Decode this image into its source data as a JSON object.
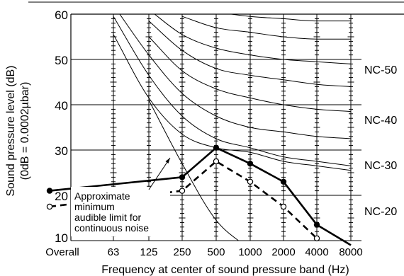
{
  "chart_data": {
    "type": "line",
    "ylabel_line1": "Sound pressure level (dB)",
    "ylabel_line2": "(0dB = 0.0002µbar)",
    "xlabel": "Frequency at center of sound pressure band (Hz)",
    "ylim": [
      10,
      60
    ],
    "y_ticks": [
      "10",
      "20",
      "30",
      "40",
      "50",
      "60"
    ],
    "x_categories": [
      "Overall",
      "63",
      "125",
      "250",
      "500",
      "1000",
      "2000",
      "4000",
      "8000"
    ],
    "grid": true,
    "nc_curve_labels": [
      "NC-50",
      "NC-40",
      "NC-30",
      "NC-20"
    ],
    "nc_curves": [
      {
        "values": [
          null,
          55.5,
          41.5,
          33.5,
          30.5,
          29.5,
          27.5,
          26.5,
          25.5
        ]
      },
      {
        "values": [
          null,
          59.5,
          46.5,
          37.5,
          32.5,
          30.5,
          28.5,
          27.5,
          26.5
        ]
      },
      {
        "values": [
          null,
          62.0,
          51.0,
          42.5,
          37.5,
          35.0,
          34.0,
          33.0,
          32.5
        ]
      },
      {
        "values": [
          null,
          null,
          55.0,
          47.5,
          43.5,
          41.5,
          40.0,
          39.0,
          38.5
        ]
      },
      {
        "values": [
          null,
          null,
          58.5,
          52.0,
          48.0,
          46.5,
          45.5,
          44.5,
          44.0
        ]
      },
      {
        "values": [
          null,
          null,
          61.0,
          55.5,
          52.5,
          51.0,
          50.0,
          49.5,
          49.0
        ]
      },
      {
        "values": [
          null,
          null,
          null,
          59.5,
          57.0,
          56.0,
          55.0,
          54.5,
          54.5
        ]
      },
      {
        "values": [
          null,
          null,
          null,
          62.0,
          60.5,
          59.5,
          59.0,
          58.5,
          58.5
        ]
      }
    ],
    "audible_limit_curve": [
      {
        "x": "125",
        "y": 41.0
      },
      {
        "x": "250",
        "y": 27.0
      },
      {
        "x": "500",
        "y": 14.5
      },
      {
        "x": "1000",
        "y": 8.0
      }
    ],
    "series": [
      {
        "style": "solid",
        "marker": "filled-circle",
        "values": [
          21.0,
          null,
          null,
          24.0,
          30.5,
          27.0,
          23.0,
          13.5,
          9.0
        ]
      },
      {
        "style": "dashed",
        "marker": "open-circle",
        "values": [
          17.5,
          null,
          null,
          21.0,
          27.5,
          23.0,
          17.5,
          10.5,
          null
        ]
      }
    ],
    "annotation": {
      "lines": [
        "Approximate",
        "minimum",
        "audible limit for",
        "continuous noise"
      ]
    }
  }
}
